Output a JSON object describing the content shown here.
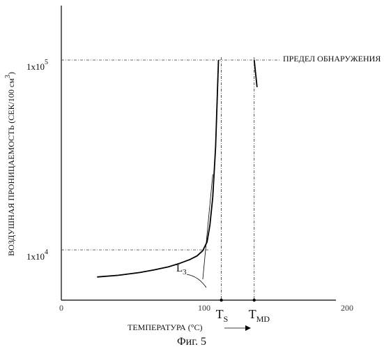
{
  "figure_caption": "Фиг. 5",
  "chart_data": {
    "type": "line",
    "title": "",
    "xlabel": "ТЕМПЕРАТУРА (°C)",
    "ylabel": "ВОЗДУШНАЯ ПРОНИЦАЕМОСТЬ (СЕК/100 см",
    "ylabel_sup": "3",
    "ylabel_tail": ")",
    "y_scale": "log",
    "x_ticks": [
      {
        "value": 0,
        "label": "0"
      },
      {
        "value": 100,
        "label": "100"
      },
      {
        "value": 200,
        "label": "200"
      }
    ],
    "y_ticks": [
      {
        "value": 10000,
        "base": "1x10",
        "exp": "4"
      },
      {
        "value": 100000,
        "base": "1x10",
        "exp": "5"
      }
    ],
    "xlim": [
      0,
      200
    ],
    "ylim": [
      6500,
      400000
    ],
    "detection_limit": {
      "value": 100000,
      "label": "ПРЕДЕЛ ОБНАРУЖЕНИЯ"
    },
    "markers": [
      {
        "name": "T",
        "sub": "S",
        "x": 112
      },
      {
        "name": "T",
        "sub": "MD",
        "x": 135
      }
    ],
    "curve_label": {
      "name": "L",
      "sub": "3"
    },
    "series": [
      {
        "x": [
          25,
          40,
          55,
          65,
          75,
          83,
          90,
          95,
          99,
          102,
          104,
          106,
          108,
          110
        ],
        "y": [
          7200,
          7350,
          7600,
          7850,
          8150,
          8500,
          8900,
          9300,
          9900,
          11000,
          13500,
          19000,
          35000,
          100000
        ]
      }
    ],
    "tangent_line": {
      "x": [
        99,
        106
      ],
      "y": [
        7000,
        25000
      ]
    },
    "tail_line": {
      "x": [
        135,
        137
      ],
      "y": [
        100000,
        72000
      ]
    },
    "grid": false,
    "legend": "none"
  }
}
